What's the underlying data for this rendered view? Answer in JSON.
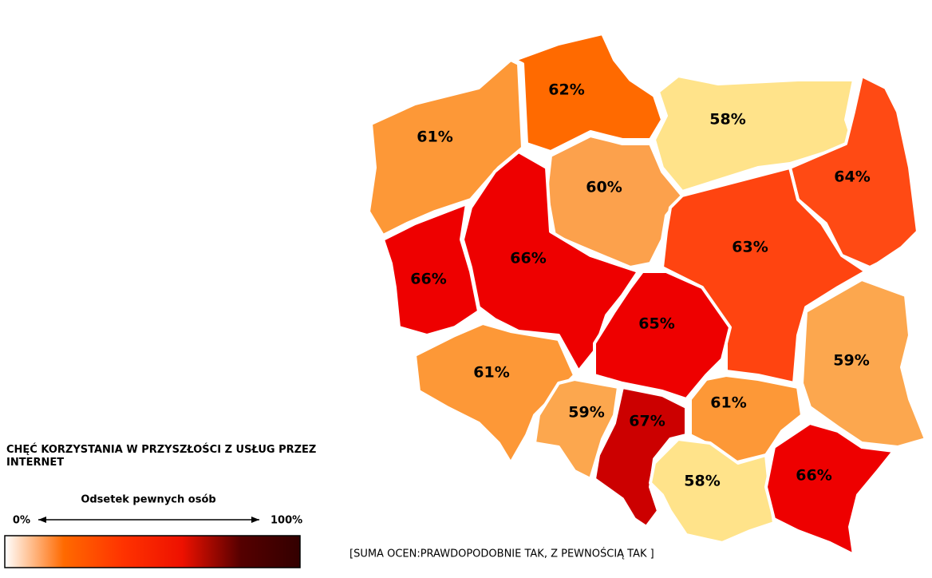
{
  "chart_data": {
    "type": "choropleth",
    "title": "CHĘĆ KORZYSTANIA W PRZYSZŁOŚCI Z USŁUG PRZEZ INTERNET",
    "scale_label": "Odsetek pewnych osób",
    "note": "[SUMA OCEN:PRAWDOPODOBNIE TAK, Z PEWNOŚCIĄ TAK ]",
    "values": [
      61,
      62,
      58,
      64,
      60,
      66,
      66,
      63,
      65,
      61,
      59,
      67,
      61,
      59,
      58,
      66
    ],
    "value_labels": [
      "61%",
      "62%",
      "58%",
      "64%",
      "60%",
      "66%",
      "66%",
      "63%",
      "65%",
      "61%",
      "59%",
      "67%",
      "61%",
      "59%",
      "58%",
      "66%"
    ],
    "colors": [
      "#fd9837",
      "#ff6a00",
      "#ffe38a",
      "#ff4a14",
      "#fca14c",
      "#ee0000",
      "#ee0000",
      "#ff4410",
      "#ee0000",
      "#fd9837",
      "#fca74e",
      "#cc0000",
      "#fd9837",
      "#fca74e",
      "#ffe38a",
      "#ee0000"
    ],
    "scale_ticks": [
      {
        "value": 0,
        "label": "0%"
      },
      {
        "value": 100,
        "label": "100%"
      }
    ],
    "scale_colors": [
      "#ffffff",
      "#ff6a00",
      "#ff3300",
      "#ee1100",
      "#550000",
      "#330000"
    ]
  }
}
